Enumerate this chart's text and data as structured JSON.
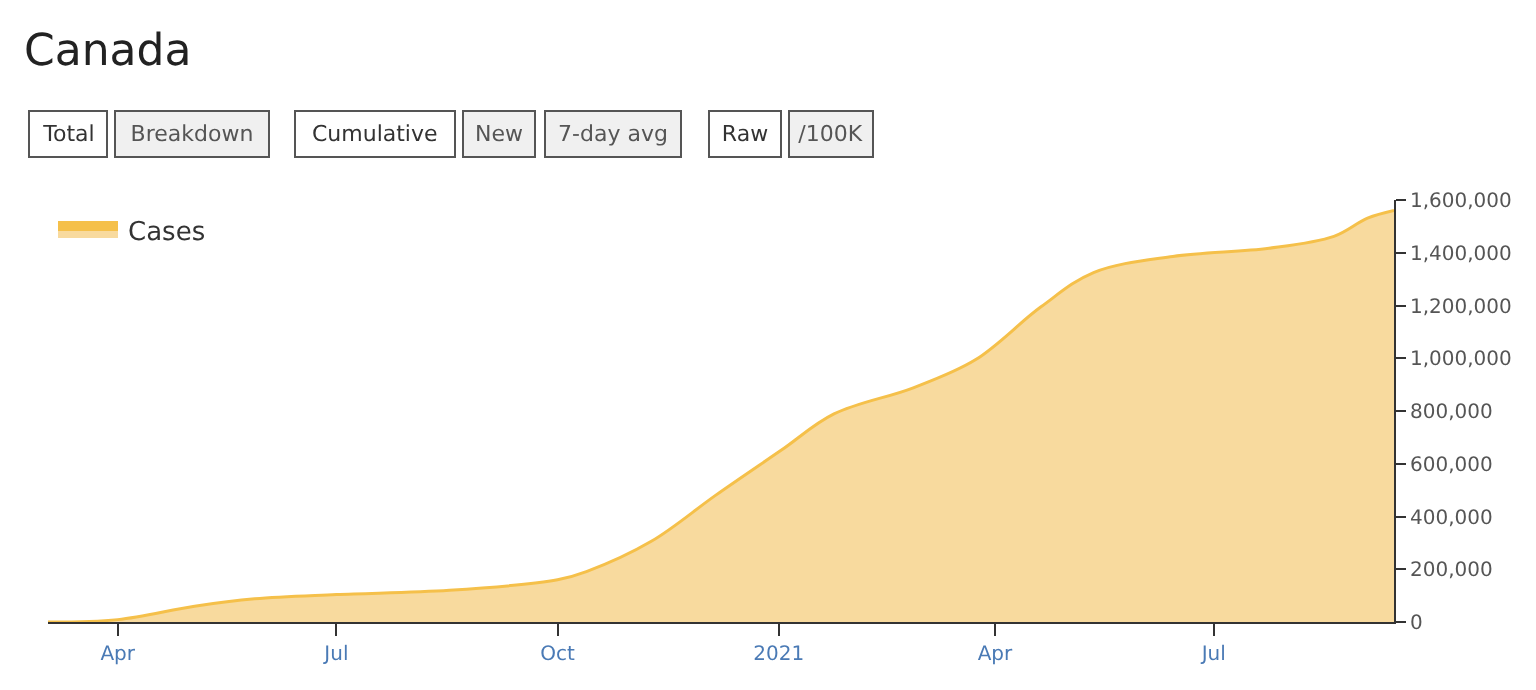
{
  "chart_data": {
    "type": "area",
    "title": "Canada",
    "annotations": [
      "Total",
      "Breakdown",
      "Cumulative",
      "New",
      "7-day avg",
      "Raw",
      "/100K"
    ],
    "x": [
      "2020-03-03",
      "2020-04-01",
      "2020-05-03",
      "2020-05-28",
      "2020-07-01",
      "2020-08-17",
      "2020-10-01",
      "2020-10-13",
      "2020-11-09",
      "2020-12-06",
      "2021-01-02",
      "2021-01-24",
      "2021-02-26",
      "2021-03-24",
      "2021-04-20",
      "2021-05-12",
      "2021-06-14",
      "2021-07-24",
      "2021-08-20",
      "2021-09-03",
      "2021-09-14"
    ],
    "series": [
      {
        "name": "Cases",
        "color": "#f5c04a",
        "values": [
          0,
          9000,
          60000,
          88000,
          104000,
          120000,
          160000,
          191000,
          306000,
          482000,
          651000,
          789000,
          888000,
          995000,
          1194000,
          1325000,
          1386000,
          1417000,
          1462000,
          1531000,
          1560000
        ]
      }
    ],
    "xlim": [
      "2020-03-03",
      "2021-09-14"
    ],
    "xticks": [
      {
        "value": "2020-04-01",
        "label": "Apr"
      },
      {
        "value": "2020-07-01",
        "label": "Jul"
      },
      {
        "value": "2020-10-01",
        "label": "Oct"
      },
      {
        "value": "2021-01-01",
        "label": "2021"
      },
      {
        "value": "2021-04-01",
        "label": "Apr"
      },
      {
        "value": "2021-07-01",
        "label": "Jul"
      }
    ],
    "ylim": [
      0,
      1600000
    ],
    "yticks": [
      {
        "value": 0,
        "label": "0"
      },
      {
        "value": 200000,
        "label": "200,000"
      },
      {
        "value": 400000,
        "label": "400,000"
      },
      {
        "value": 600000,
        "label": "600,000"
      },
      {
        "value": 800000,
        "label": "800,000"
      },
      {
        "value": 1000000,
        "label": "1,000,000"
      },
      {
        "value": 1200000,
        "label": "1,200,000"
      },
      {
        "value": 1400000,
        "label": "1,400,000"
      },
      {
        "value": 1600000,
        "label": "1,600,000"
      }
    ],
    "legend": "top left"
  }
}
